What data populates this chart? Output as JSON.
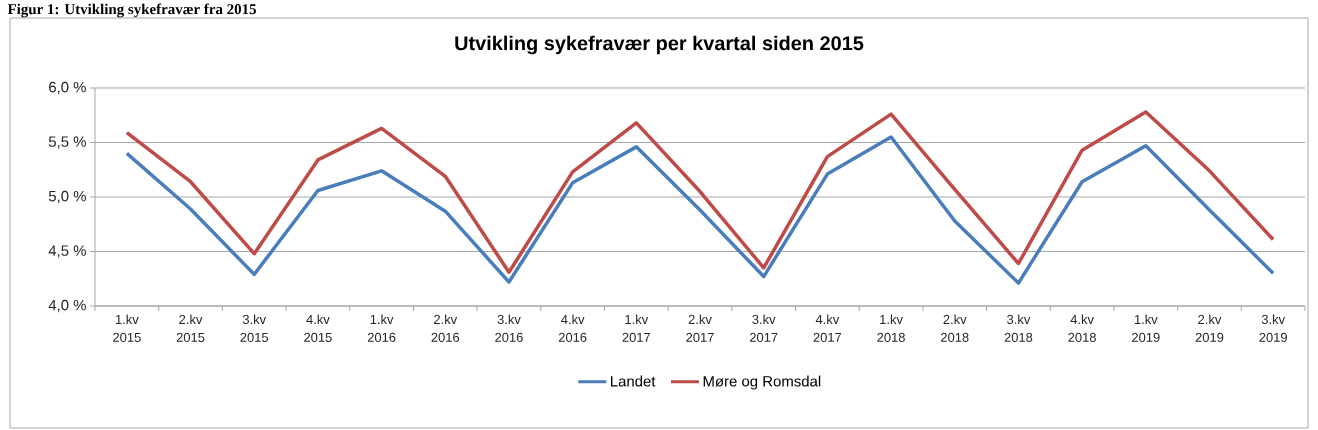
{
  "chart_data": {
    "type": "line",
    "title": "Utvikling sykefravær per kvartal siden 2015",
    "annotations": [
      "Figur 1: Utvikling sykefravær fra 2015"
    ],
    "categories": [
      "1.kv 2015",
      "2.kv 2015",
      "3.kv 2015",
      "4.kv 2015",
      "1.kv 2016",
      "2.kv 2016",
      "3.kv 2016",
      "4.kv 2016",
      "1.kv 2017",
      "2.kv 2017",
      "3.kv 2017",
      "4.kv 2017",
      "1.kv 2018",
      "2.kv 2018",
      "3.kv 2018",
      "4.kv 2018",
      "1.kv 2019",
      "2.kv 2019",
      "3.kv 2019"
    ],
    "series": [
      {
        "name": "Landet",
        "color": "#4a7ebb",
        "values": [
          5.4,
          4.89,
          4.29,
          5.06,
          5.24,
          4.87,
          4.22,
          5.13,
          5.46,
          4.88,
          4.27,
          5.21,
          5.55,
          4.78,
          4.21,
          5.14,
          5.47,
          4.88,
          4.3
        ]
      },
      {
        "name": "Møre og Romsdal",
        "color": "#be4b48",
        "values": [
          5.59,
          5.14,
          4.48,
          5.34,
          5.63,
          5.19,
          4.31,
          5.23,
          5.68,
          5.05,
          4.35,
          5.37,
          5.76,
          5.07,
          4.39,
          5.43,
          5.78,
          5.24,
          4.61
        ]
      }
    ],
    "ylim": [
      4.0,
      6.0
    ],
    "yticks": [
      {
        "value": 4.0,
        "label": "4,0 %"
      },
      {
        "value": 4.5,
        "label": "4,5 %"
      },
      {
        "value": 5.0,
        "label": "5,0 %"
      },
      {
        "value": 5.5,
        "label": "5,5 %"
      },
      {
        "value": 6.0,
        "label": "6,0 %"
      }
    ],
    "grid": "y",
    "legend": "bottom",
    "marker": "none",
    "line_style": "solid"
  }
}
